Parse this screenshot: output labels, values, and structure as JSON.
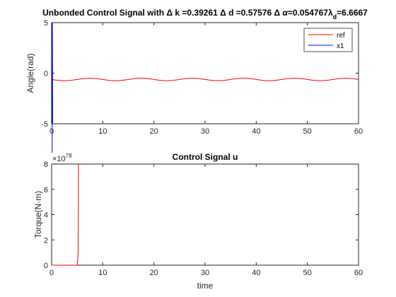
{
  "chart_data": [
    {
      "type": "line",
      "title": {
        "prefix": "Unbonded Control Signal with ",
        "delta": "Δ",
        "k_part": " k =0.39261 ",
        "d_part": " d =0.57576 ",
        "alpha": " α",
        "alpha_val": "=0.054767",
        "lambda": "λ",
        "sub": "d",
        "lambda_val": "=6.6667"
      },
      "xlabel": "",
      "ylabel": "Angle(rad)",
      "xlim": [
        0,
        60
      ],
      "ylim": [
        -5,
        5
      ],
      "xticks": [
        0,
        10,
        20,
        30,
        40,
        50,
        60
      ],
      "yticks": [
        -5,
        0,
        5
      ],
      "grid": false,
      "legend_position": "top-right",
      "series": [
        {
          "name": "ref",
          "color": "#ff0000",
          "kind": "sine",
          "x_range": [
            0,
            60
          ],
          "offset": -0.62,
          "amplitude": 0.12,
          "period": 10.0,
          "phase_deg": 180
        },
        {
          "name": "x1",
          "color": "#0000ff",
          "kind": "spike",
          "x": [
            0,
            0.05,
            0.1,
            0.15,
            0.2
          ],
          "y": [
            0,
            5,
            -5,
            5,
            -5
          ]
        }
      ]
    },
    {
      "type": "line",
      "title": "Control Signal u",
      "xlabel": "time",
      "ylabel": "Torque(N·m)",
      "xlim": [
        0,
        60
      ],
      "ylim": [
        0,
        8
      ],
      "xticks": [
        0,
        10,
        20,
        30,
        40,
        50,
        60
      ],
      "yticks": [
        0,
        2,
        4,
        6,
        8
      ],
      "exponent_base": "×10",
      "exponent_power": "78",
      "grid": false,
      "series": [
        {
          "name": "u",
          "color": "#ff0000",
          "x": [
            0,
            5.0,
            5.1,
            5.2,
            5.25
          ],
          "y": [
            0,
            0,
            0.5,
            1.2,
            8
          ]
        }
      ]
    }
  ]
}
